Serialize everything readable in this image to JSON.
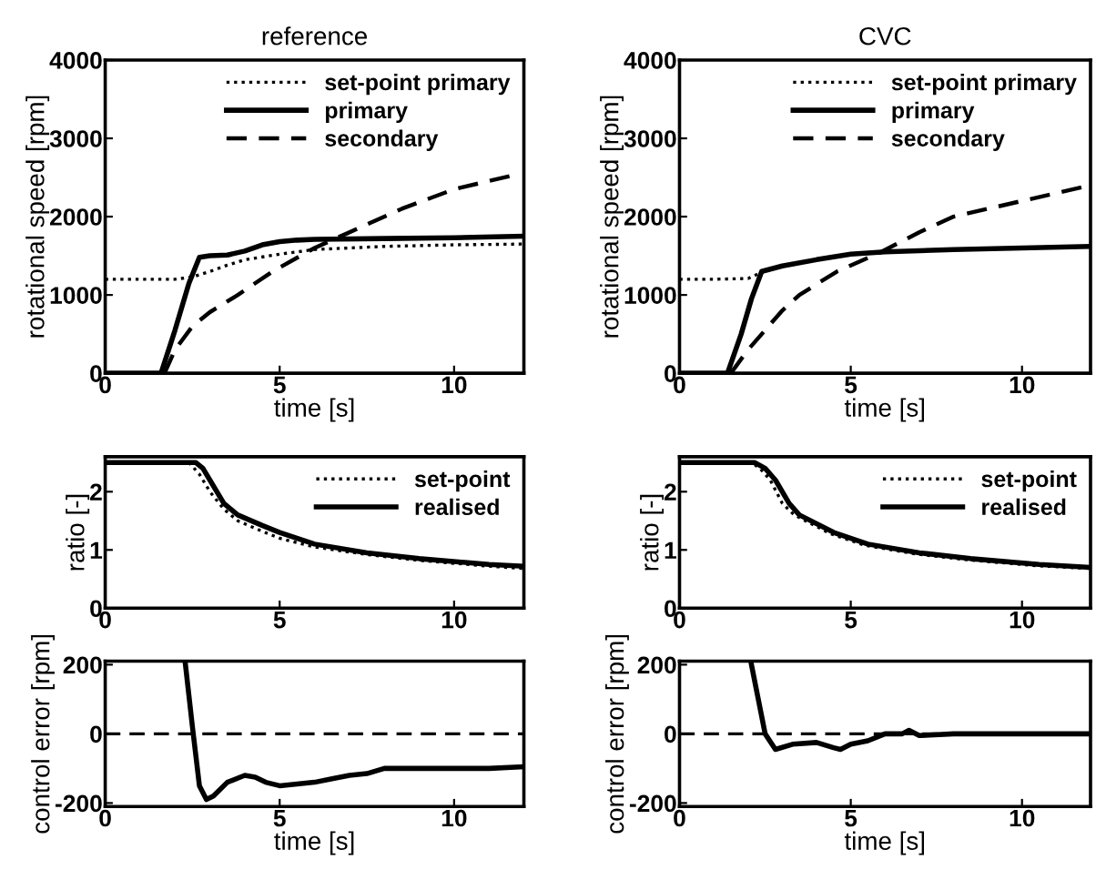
{
  "chart_data": [
    {
      "type": "line",
      "title": "reference",
      "xlabel": "time [s]",
      "ylabel": "rotational speed [rpm]",
      "xlim": [
        0,
        12
      ],
      "ylim": [
        0,
        4000
      ],
      "xticks": [
        0,
        5,
        10
      ],
      "yticks": [
        0,
        1000,
        2000,
        3000,
        4000
      ],
      "legend": "top right",
      "grid": false,
      "series": [
        {
          "name": "set-point primary",
          "color": "#000000",
          "line_style": "dotted",
          "x": [
            0,
            1,
            2,
            2.5,
            3,
            3.5,
            4,
            5,
            6,
            7,
            8,
            10,
            12
          ],
          "values": [
            1200,
            1200,
            1200,
            1230,
            1300,
            1380,
            1450,
            1520,
            1580,
            1600,
            1620,
            1640,
            1650
          ]
        },
        {
          "name": "primary",
          "color": "#000000",
          "line_style": "solid",
          "x": [
            0,
            1.6,
            2.0,
            2.4,
            2.7,
            3.0,
            3.5,
            4.0,
            4.5,
            5.0,
            5.5,
            6,
            8,
            10,
            12
          ],
          "values": [
            0,
            0,
            550,
            1150,
            1480,
            1500,
            1510,
            1560,
            1640,
            1680,
            1700,
            1710,
            1720,
            1730,
            1750
          ]
        },
        {
          "name": "secondary",
          "color": "#000000",
          "line_style": "dashed",
          "x": [
            1.7,
            2.0,
            2.5,
            3.0,
            3.8,
            4.8,
            6.0,
            7.5,
            8.5,
            10,
            11.9
          ],
          "values": [
            0,
            300,
            600,
            780,
            1000,
            1300,
            1600,
            1900,
            2100,
            2350,
            2550
          ]
        }
      ]
    },
    {
      "type": "line",
      "title": "CVC",
      "xlabel": "time [s]",
      "ylabel": "rotational speed [rpm]",
      "xlim": [
        0,
        12
      ],
      "ylim": [
        0,
        4000
      ],
      "xticks": [
        0,
        5,
        10
      ],
      "yticks": [
        0,
        1000,
        2000,
        3000,
        4000
      ],
      "legend": "top right",
      "grid": false,
      "series": [
        {
          "name": "set-point primary",
          "color": "#000000",
          "line_style": "dotted",
          "x": [
            0,
            1,
            2.0,
            2.4,
            3,
            4,
            5,
            6,
            8,
            10,
            12
          ],
          "values": [
            1200,
            1200,
            1210,
            1290,
            1370,
            1450,
            1520,
            1550,
            1580,
            1600,
            1620
          ]
        },
        {
          "name": "primary",
          "color": "#000000",
          "line_style": "solid",
          "x": [
            0,
            1.4,
            1.8,
            2.1,
            2.4,
            3,
            4,
            5,
            6,
            8,
            10,
            12
          ],
          "values": [
            0,
            0,
            500,
            950,
            1300,
            1370,
            1450,
            1520,
            1550,
            1580,
            1600,
            1620
          ]
        },
        {
          "name": "secondary",
          "color": "#000000",
          "line_style": "dashed",
          "x": [
            1.5,
            2.0,
            2.4,
            3.0,
            3.5,
            4.6,
            5.8,
            7,
            8,
            10,
            12
          ],
          "values": [
            0,
            300,
            500,
            800,
            1000,
            1300,
            1530,
            1800,
            2000,
            2200,
            2400
          ]
        }
      ]
    },
    {
      "type": "line",
      "ylabel": "ratio [-]",
      "xlim": [
        0,
        12
      ],
      "ylim": [
        0,
        2.6
      ],
      "xticks": [
        0,
        5,
        10
      ],
      "yticks": [
        0,
        1,
        2
      ],
      "legend": "top right",
      "grid": false,
      "series": [
        {
          "name": "set-point",
          "color": "#000000",
          "line_style": "dotted",
          "x": [
            0,
            2.4,
            2.7,
            3.0,
            3.4,
            3.8,
            4.5,
            5,
            6,
            7.5,
            9,
            11,
            12
          ],
          "values": [
            2.5,
            2.5,
            2.3,
            2.0,
            1.7,
            1.5,
            1.32,
            1.2,
            1.05,
            0.92,
            0.82,
            0.72,
            0.68
          ]
        },
        {
          "name": "realised",
          "color": "#000000",
          "line_style": "solid",
          "x": [
            0,
            2.6,
            2.8,
            3.0,
            3.4,
            3.8,
            4.5,
            5,
            6,
            7.5,
            9,
            11,
            12
          ],
          "values": [
            2.5,
            2.5,
            2.4,
            2.2,
            1.8,
            1.6,
            1.42,
            1.3,
            1.1,
            0.95,
            0.85,
            0.75,
            0.72
          ]
        }
      ]
    },
    {
      "type": "line",
      "ylabel": "ratio [-]",
      "xlim": [
        0,
        12
      ],
      "ylim": [
        0,
        2.6
      ],
      "xticks": [
        0,
        5,
        10
      ],
      "yticks": [
        0,
        1,
        2
      ],
      "legend": "top right",
      "grid": false,
      "series": [
        {
          "name": "set-point",
          "color": "#000000",
          "line_style": "dotted",
          "x": [
            0,
            2.1,
            2.35,
            2.65,
            3.0,
            3.35,
            4.4,
            5.4,
            6.9,
            8.4,
            10.4,
            12
          ],
          "values": [
            2.5,
            2.5,
            2.4,
            2.2,
            1.8,
            1.6,
            1.28,
            1.08,
            0.93,
            0.83,
            0.73,
            0.68
          ]
        },
        {
          "name": "realised",
          "color": "#000000",
          "line_style": "solid",
          "x": [
            0,
            2.2,
            2.5,
            2.8,
            3.2,
            3.5,
            4.5,
            5.5,
            7,
            8.5,
            10.5,
            12
          ],
          "values": [
            2.5,
            2.5,
            2.4,
            2.2,
            1.8,
            1.6,
            1.3,
            1.1,
            0.95,
            0.85,
            0.75,
            0.7
          ]
        }
      ]
    },
    {
      "type": "line",
      "xlabel": "time [s]",
      "ylabel": "control error [rpm]",
      "xlim": [
        0,
        12
      ],
      "ylim": [
        -210,
        210
      ],
      "xticks": [
        0,
        5,
        10
      ],
      "yticks": [
        -200,
        0,
        200
      ],
      "grid": false,
      "ref_lines": [
        {
          "axis": "y",
          "value": 0,
          "color": "#000000",
          "line_style": "dashed"
        }
      ],
      "series": [
        {
          "color": "#000000",
          "line_style": "solid",
          "x": [
            2.3,
            2.5,
            2.7,
            2.9,
            3.1,
            3.5,
            4.0,
            4.3,
            4.6,
            5.0,
            5.5,
            6.0,
            6.5,
            7.0,
            7.5,
            8.0,
            8.5,
            9,
            10,
            11,
            12
          ],
          "values": [
            200,
            20,
            -150,
            -190,
            -180,
            -140,
            -120,
            -125,
            -140,
            -150,
            -145,
            -140,
            -130,
            -120,
            -115,
            -100,
            -100,
            -100,
            -100,
            -100,
            -95
          ]
        }
      ]
    },
    {
      "type": "line",
      "xlabel": "time [s]",
      "ylabel": "control error [rpm]",
      "xlim": [
        0,
        12
      ],
      "ylim": [
        -210,
        210
      ],
      "xticks": [
        0,
        5,
        10
      ],
      "yticks": [
        -200,
        0,
        200
      ],
      "grid": false,
      "ref_lines": [
        {
          "axis": "y",
          "value": 0,
          "color": "#000000",
          "line_style": "dashed"
        }
      ],
      "series": [
        {
          "color": "#000000",
          "line_style": "solid",
          "x": [
            2.1,
            2.5,
            2.8,
            3.3,
            4.0,
            4.5,
            4.7,
            5.0,
            5.5,
            6.0,
            6.5,
            6.7,
            7.0,
            8.0,
            10,
            12
          ],
          "values": [
            200,
            0,
            -45,
            -30,
            -25,
            -40,
            -45,
            -30,
            -20,
            0,
            0,
            10,
            -5,
            0,
            0,
            0
          ]
        }
      ]
    }
  ]
}
